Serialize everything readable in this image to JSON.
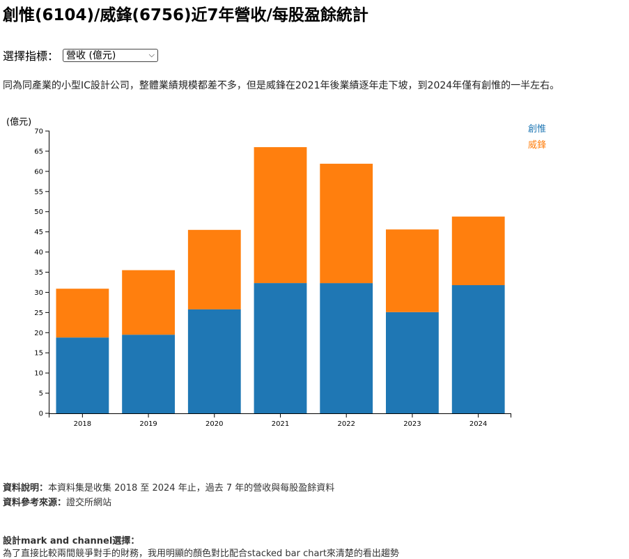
{
  "page": {
    "title": "創惟(6104)/威鋒(6756)近7年營收/每股盈餘統計",
    "selector_label": "選擇指標：",
    "selector_value": "營收 (億元)",
    "description": "同為同產業的小型IC設計公司，整體業績規模都差不多，但是威鋒在2021年後業績逐年走下坡，到2024年僅有創惟的一半左右。",
    "source_note_label": "資料說明：",
    "source_note": "本資料集是收集 2018 至 2024 年止，過去 7 年的營收與每股盈餘資料",
    "source_ref_label": "資料參考來源：",
    "source_ref": "證交所網站",
    "design_label": "設計mark and channel選擇：",
    "design_text": "為了直接比較兩間競爭對手的財務，我用明顯的顏色對比配合stacked bar chart來清楚的看出趨勢"
  },
  "chart_data": {
    "type": "bar",
    "stacked": true,
    "ylabel": "(億元)",
    "categories": [
      "2018",
      "2019",
      "2020",
      "2021",
      "2022",
      "2023",
      "2024"
    ],
    "series": [
      {
        "name": "創惟",
        "color": "#1f77b4",
        "values": [
          18.8,
          19.5,
          25.8,
          32.3,
          32.3,
          25.1,
          31.8
        ]
      },
      {
        "name": "威鋒",
        "color": "#ff7f0e",
        "values": [
          12.1,
          16.0,
          19.7,
          33.7,
          29.6,
          20.5,
          17.0
        ]
      }
    ],
    "ylim": [
      0,
      70
    ],
    "yticks": [
      0,
      5,
      10,
      15,
      20,
      25,
      30,
      35,
      40,
      45,
      50,
      55,
      60,
      65,
      70
    ],
    "grid": false,
    "legend_position": "top-right"
  }
}
